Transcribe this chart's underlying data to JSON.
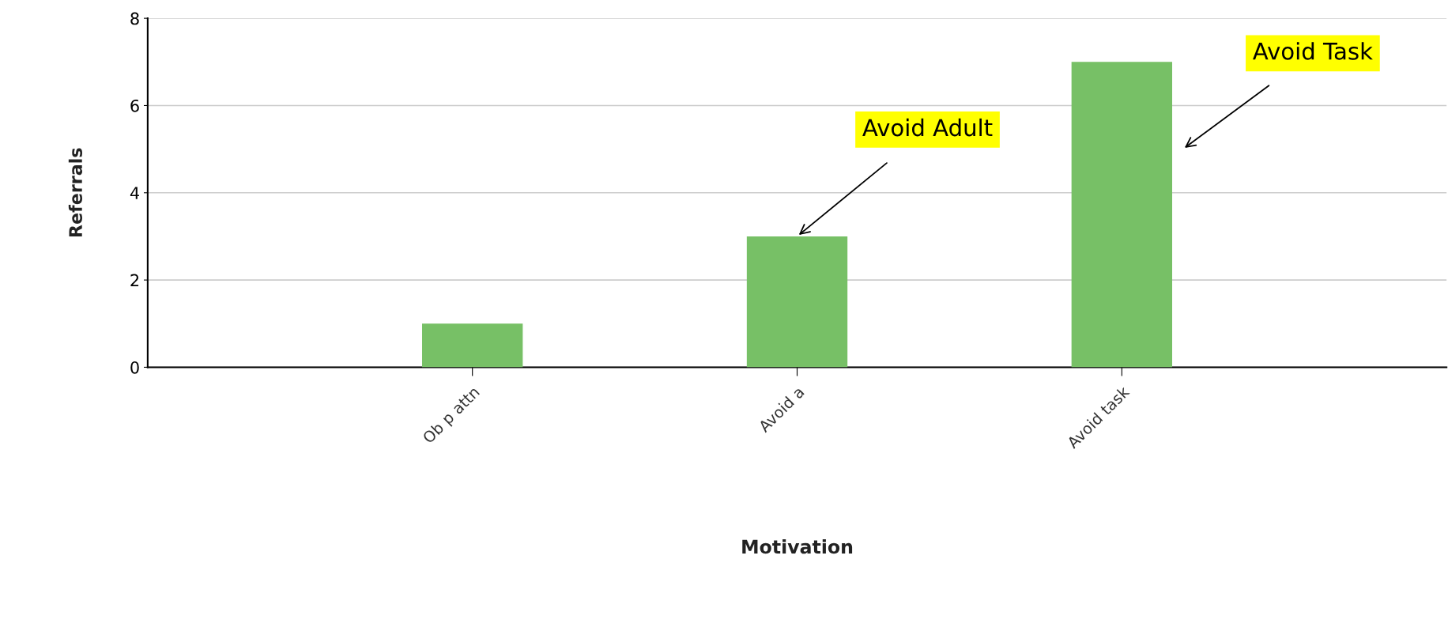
{
  "chart_data": {
    "type": "bar",
    "categories": [
      "Ob p attn",
      "Avoid a",
      "Avoid task"
    ],
    "values": [
      1,
      3,
      7
    ],
    "color": "#77c066",
    "xlabel": "Motivation",
    "ylabel": "Referrals",
    "ylim": [
      0,
      8
    ],
    "yticks": [
      0,
      2,
      4,
      6,
      8
    ],
    "grid": "y",
    "annotations": [
      {
        "text": "Avoid Adult",
        "x": "Avoid a",
        "y": 3
      },
      "Avoid Task"
    ]
  }
}
